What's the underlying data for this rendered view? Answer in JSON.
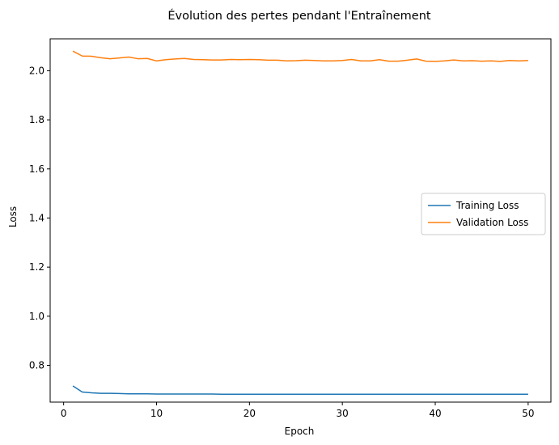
{
  "chart_data": {
    "type": "line",
    "title": "Évolution des pertes pendant l'Entraînement",
    "xlabel": "Epoch",
    "ylabel": "Loss",
    "xlim": [
      -1.45,
      52.45
    ],
    "ylim": [
      0.65,
      2.13
    ],
    "xticks": [
      0,
      10,
      20,
      30,
      40,
      50
    ],
    "yticks": [
      0.8,
      1.0,
      1.2,
      1.4,
      1.6,
      1.8,
      2.0
    ],
    "ytick_labels": [
      "0.8",
      "1.0",
      "1.2",
      "1.4",
      "1.6",
      "1.8",
      "2.0"
    ],
    "grid": false,
    "legend_position": "center-right",
    "x": [
      1,
      2,
      3,
      4,
      5,
      6,
      7,
      8,
      9,
      10,
      11,
      12,
      13,
      14,
      15,
      16,
      17,
      18,
      19,
      20,
      21,
      22,
      23,
      24,
      25,
      26,
      27,
      28,
      29,
      30,
      31,
      32,
      33,
      34,
      35,
      36,
      37,
      38,
      39,
      40,
      41,
      42,
      43,
      44,
      45,
      46,
      47,
      48,
      49,
      50
    ],
    "series": [
      {
        "name": "Training Loss",
        "color": "#1f77b4",
        "values": [
          0.716,
          0.691,
          0.688,
          0.686,
          0.686,
          0.685,
          0.684,
          0.684,
          0.684,
          0.683,
          0.683,
          0.683,
          0.683,
          0.683,
          0.683,
          0.683,
          0.682,
          0.682,
          0.682,
          0.682,
          0.682,
          0.682,
          0.682,
          0.682,
          0.682,
          0.682,
          0.682,
          0.682,
          0.682,
          0.682,
          0.682,
          0.682,
          0.682,
          0.682,
          0.682,
          0.682,
          0.682,
          0.682,
          0.682,
          0.682,
          0.682,
          0.682,
          0.682,
          0.682,
          0.682,
          0.682,
          0.682,
          0.682,
          0.682,
          0.682
        ]
      },
      {
        "name": "Validation Loss",
        "color": "#ff7f0e",
        "values": [
          2.08,
          2.06,
          2.059,
          2.053,
          2.049,
          2.052,
          2.056,
          2.049,
          2.05,
          2.04,
          2.045,
          2.048,
          2.05,
          2.046,
          2.045,
          2.044,
          2.044,
          2.046,
          2.045,
          2.046,
          2.045,
          2.043,
          2.043,
          2.04,
          2.041,
          2.043,
          2.042,
          2.04,
          2.04,
          2.042,
          2.046,
          2.04,
          2.04,
          2.045,
          2.039,
          2.039,
          2.043,
          2.048,
          2.039,
          2.038,
          2.04,
          2.044,
          2.04,
          2.041,
          2.039,
          2.04,
          2.038,
          2.042,
          2.04,
          2.042
        ]
      }
    ]
  }
}
